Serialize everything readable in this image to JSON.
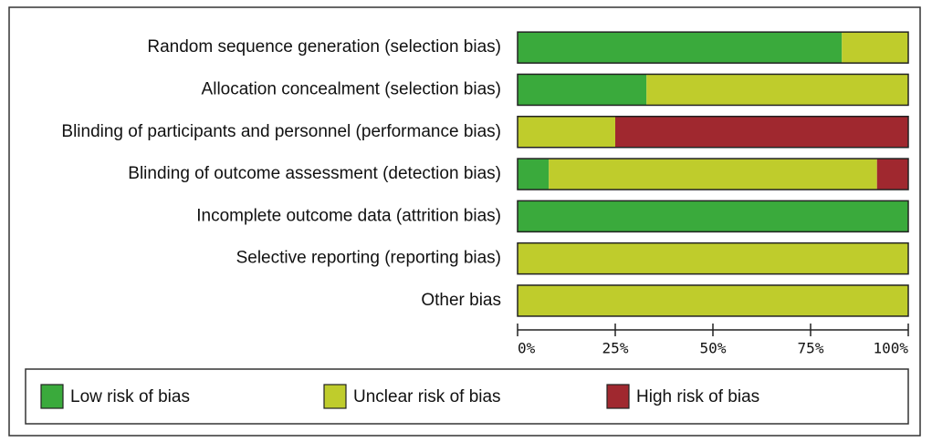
{
  "chart_data": {
    "type": "bar",
    "orientation": "horizontal",
    "stacked": true,
    "categories": [
      "Random sequence generation (selection bias)",
      "Allocation concealment (selection bias)",
      "Blinding of participants and personnel (performance bias)",
      "Blinding of outcome assessment (detection bias)",
      "Incomplete outcome data (attrition bias)",
      "Selective reporting (reporting bias)",
      "Other bias"
    ],
    "series": [
      {
        "name": "Low risk of bias",
        "color": "#3aaa3c",
        "values": [
          83,
          33,
          0,
          8,
          100,
          0,
          0
        ]
      },
      {
        "name": "Unclear risk of bias",
        "color": "#bfcc2c",
        "values": [
          17,
          67,
          25,
          84,
          0,
          100,
          100
        ]
      },
      {
        "name": "High risk of bias",
        "color": "#a0282f",
        "values": [
          0,
          0,
          75,
          8,
          0,
          0,
          0
        ]
      }
    ],
    "xlim": [
      0,
      100
    ],
    "xticks": [
      {
        "value": 0,
        "label": "0%"
      },
      {
        "value": 25,
        "label": "25%"
      },
      {
        "value": 50,
        "label": "50%"
      },
      {
        "value": 75,
        "label": "75%"
      },
      {
        "value": 100,
        "label": "100%"
      }
    ],
    "legend": "bottom"
  }
}
